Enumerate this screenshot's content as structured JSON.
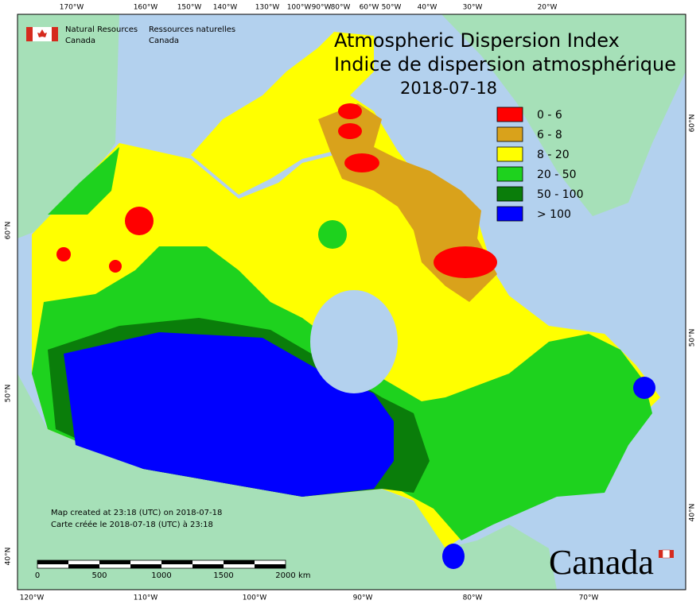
{
  "header": {
    "org_en_line1": "Natural Resources",
    "org_en_line2": "Canada",
    "org_fr_line1": "Ressources naturelles",
    "org_fr_line2": "Canada"
  },
  "title": {
    "en": "Atmospheric Dispersion Index",
    "fr": "Indice de dispersion atmosphérique",
    "date": "2018-07-18"
  },
  "legend": [
    {
      "label": "0 - 6",
      "color": "#ff0000"
    },
    {
      "label": "6 - 8",
      "color": "#d9a21b"
    },
    {
      "label": "8 - 20",
      "color": "#ffff00"
    },
    {
      "label": "20 - 50",
      "color": "#1ed21e"
    },
    {
      "label": "50 - 100",
      "color": "#0a7d0a"
    },
    {
      "label": "> 100",
      "color": "#0000ff"
    }
  ],
  "graticule": {
    "top": [
      "170°W",
      "160°W",
      "150°W",
      "140°W",
      "130°W",
      "100°W",
      "90°W",
      "80°W",
      "60°W",
      "50°W",
      "40°W",
      "30°W",
      "20°W"
    ],
    "bottom": [
      "120°W",
      "110°W",
      "100°W",
      "90°W",
      "80°W",
      "70°W"
    ],
    "left": [
      "60°N",
      "50°N",
      "40°N"
    ],
    "right": [
      "60°N",
      "50°N",
      "40°N"
    ]
  },
  "footer": {
    "line1": "Map created at 23:18 (UTC) on 2018-07-18",
    "line2": "Carte créée le 2018-07-18 (UTC) à 23:18"
  },
  "scale_bar": {
    "labels": [
      "0",
      "500",
      "1000",
      "1500",
      "2000"
    ],
    "unit": "km"
  },
  "wordmark": "Canada"
}
